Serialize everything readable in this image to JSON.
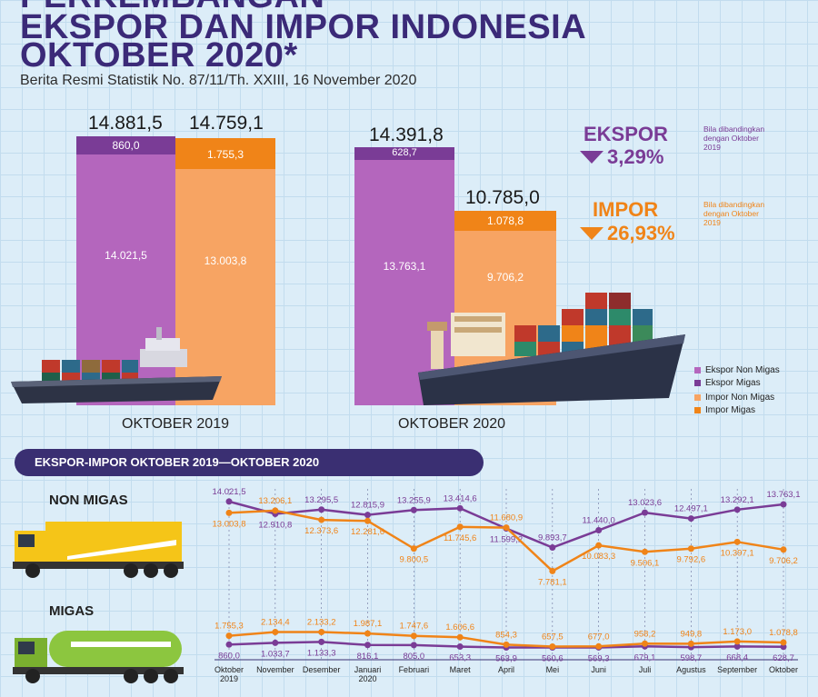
{
  "header": {
    "title_line1": "PERKEMBANGAN",
    "title_line2": "EKSPOR DAN IMPOR INDONESIA",
    "title_line3": "OKTOBER 2020*",
    "subtitle": "Berita Resmi Statistik No. 87/11/Th. XXIII, 16 November 2020"
  },
  "colors": {
    "ekspor_non_migas": "#b466bd",
    "ekspor_migas": "#7a3c96",
    "impor_non_migas": "#f7a463",
    "impor_migas": "#f08418",
    "dark": "#3a2f72"
  },
  "summary": {
    "ekspor_label": "EKSPOR",
    "ekspor_change": "3,29%",
    "ekspor_note": "Bila dibandingkan dengan Oktober 2019",
    "impor_label": "IMPOR",
    "impor_change": "26,93%",
    "impor_note": "Bila dibandingkan dengan Oktober 2019"
  },
  "legend": {
    "items": [
      "Ekspor Non Migas",
      "Ekspor Migas",
      "Impor Non Migas",
      "Impor Migas"
    ]
  },
  "banner": {
    "label": "EKSPOR-IMPOR OKTOBER 2019—OKTOBER 2020"
  },
  "sections": {
    "non_migas": "NON MIGAS",
    "migas": "MIGAS"
  },
  "chart_data": [
    {
      "type": "bar",
      "stacked": true,
      "groups": [
        {
          "period": "OKTOBER 2019",
          "ekspor": {
            "total": "14.881,5",
            "non_migas": "14.021,5",
            "migas": "860,0"
          },
          "impor": {
            "total": "14.759,1",
            "non_migas": "13.003,8",
            "migas": "1.755,3"
          }
        },
        {
          "period": "OKTOBER 2020",
          "ekspor": {
            "total": "14.391,8",
            "non_migas": "13.763,1",
            "migas": "628,7"
          },
          "impor": {
            "total": "10.785,0",
            "non_migas": "9.706,2",
            "migas": "1.078,8"
          }
        }
      ],
      "values": {
        "ekspor_non_migas": [
          14021.5,
          13763.1
        ],
        "ekspor_migas": [
          860.0,
          628.7
        ],
        "impor_non_migas": [
          13003.8,
          9706.2
        ],
        "impor_migas": [
          1755.3,
          1078.8
        ]
      }
    },
    {
      "type": "line",
      "x_labels": [
        [
          "Oktober",
          "2019"
        ],
        [
          "November"
        ],
        [
          "Desember"
        ],
        [
          "Januari",
          "2020"
        ],
        [
          "Februari"
        ],
        [
          "Maret"
        ],
        [
          "April"
        ],
        [
          "Mei"
        ],
        [
          "Juni"
        ],
        [
          "Juli"
        ],
        [
          "Agustus"
        ],
        [
          "September"
        ],
        [
          "Oktober"
        ]
      ],
      "non_migas": {
        "ekspor": [
          14021.5,
          12910.8,
          13295.5,
          12815.9,
          13255.9,
          13414.6,
          11599.2,
          9893.7,
          11440.0,
          13023.6,
          12497.1,
          13292.1,
          13763.1
        ],
        "ekspor_labels": [
          "14.021,5",
          "12.910,8",
          "13.295,5",
          "12.815,9",
          "13.255,9",
          "13.414,6",
          "11.599,2",
          "9.893,7",
          "11.440,0",
          "13.023,6",
          "12.497,1",
          "13.292,1",
          "13.763,1"
        ],
        "impor": [
          13003.8,
          13206.1,
          12373.6,
          12281.6,
          9800.5,
          11745.6,
          11680.9,
          7781.1,
          10083.3,
          9506.1,
          9792.6,
          10397.1,
          9706.2
        ],
        "impor_labels": [
          "13.003,8",
          "13.206,1",
          "12.373,6",
          "12.281,6",
          "9.800,5",
          "11.745,6",
          "11.680,9",
          "7.781,1",
          "10.083,3",
          "9.506,1",
          "9.792,6",
          "10.397,1",
          "9.706,2"
        ]
      },
      "migas": {
        "ekspor": [
          860.0,
          1033.7,
          1133.3,
          816.1,
          805.0,
          653.3,
          563.9,
          560.6,
          569.3,
          679.1,
          598.7,
          668.4,
          628.7
        ],
        "ekspor_labels": [
          "860,0",
          "1.033,7",
          "1.133,3",
          "816,1",
          "805,0",
          "653,3",
          "563,9",
          "560,6",
          "569,3",
          "679,1",
          "598,7",
          "668,4",
          "628,7"
        ],
        "impor": [
          1755.3,
          2134.4,
          2133.2,
          1987.1,
          1747.6,
          1606.6,
          854.3,
          657.5,
          677.0,
          958.2,
          949.8,
          1173.0,
          1078.8
        ],
        "impor_labels": [
          "1.755,3",
          "2.134,4",
          "2.133,2",
          "1.987,1",
          "1.747,6",
          "1.606,6",
          "854,3",
          "657,5",
          "677,0",
          "958,2",
          "949,8",
          "1.173,0",
          "1.078,8"
        ]
      }
    }
  ]
}
